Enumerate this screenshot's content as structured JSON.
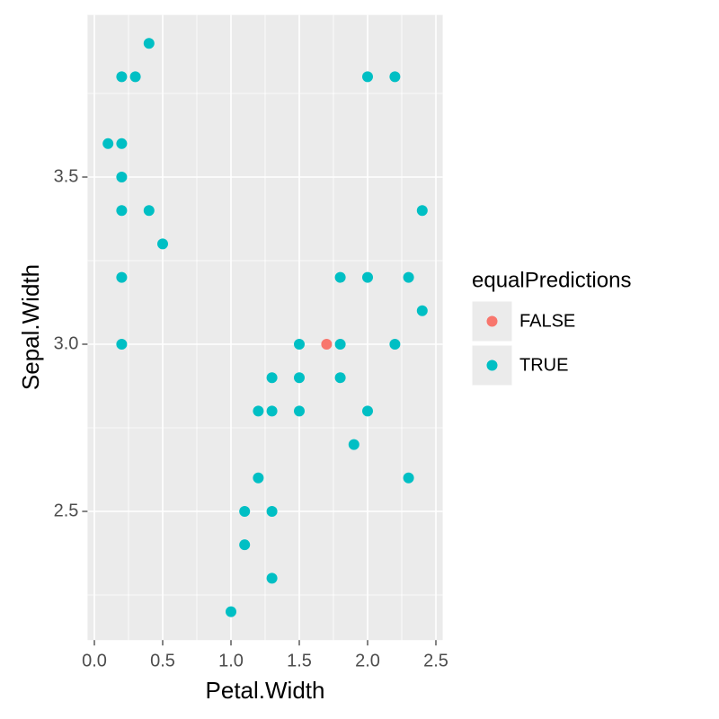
{
  "chart_data": {
    "type": "scatter",
    "x_label": "Petal.Width",
    "y_label": "Sepal.Width",
    "legend_title": "equalPredictions",
    "legend": "right",
    "grid": true,
    "xlim": [
      -0.05,
      2.55
    ],
    "ylim": [
      2.115,
      3.985
    ],
    "xticks": [
      {
        "value": 0,
        "label": "0.0"
      },
      0.5,
      {
        "value": 1,
        "label": "1.0"
      },
      1.5,
      {
        "value": 2,
        "label": "2.0"
      },
      2.5
    ],
    "yticks": [
      2.5,
      {
        "value": 3,
        "label": "3.0"
      },
      3.5
    ],
    "series": [
      {
        "name": "FALSE",
        "color": "#F8766D",
        "x": [
          1.7
        ],
        "y": [
          3.0
        ]
      },
      {
        "name": "TRUE",
        "color": "#00BFC4",
        "x": [
          0.4,
          0.2,
          0.3,
          2.0,
          2.2,
          0.1,
          0.2,
          0.2,
          0.2,
          0.4,
          2.4,
          0.5,
          0.2,
          1.8,
          2.0,
          2.3,
          2.4,
          0.2,
          1.5,
          1.8,
          2.2,
          1.3,
          1.5,
          1.8,
          1.2,
          1.3,
          1.5,
          2.0,
          1.9,
          1.2,
          2.3,
          1.1,
          1.3,
          1.1,
          1.3,
          1.0
        ],
        "y": [
          3.9,
          3.8,
          3.8,
          3.8,
          3.8,
          3.6,
          3.6,
          3.5,
          3.4,
          3.4,
          3.4,
          3.3,
          3.2,
          3.2,
          3.2,
          3.2,
          3.1,
          3.0,
          3.0,
          3.0,
          3.0,
          2.9,
          2.9,
          2.9,
          2.8,
          2.8,
          2.8,
          2.8,
          2.7,
          2.6,
          2.6,
          2.5,
          2.5,
          2.4,
          2.3,
          2.2
        ]
      }
    ]
  }
}
